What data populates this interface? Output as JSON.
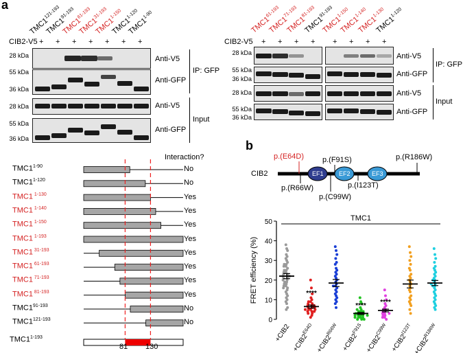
{
  "panel_a": {
    "label": "a",
    "left_lanes": [
      {
        "name": "TMC1",
        "sup": "121-193",
        "red": false
      },
      {
        "name": "TMC1",
        "sup": "91-193",
        "red": false
      },
      {
        "name": "TMC1",
        "sup": "61-193",
        "red": true
      },
      {
        "name": "TMC1",
        "sup": "31-193",
        "red": true
      },
      {
        "name": "TMC1",
        "sup": "1-150",
        "red": true
      },
      {
        "name": "TMC1",
        "sup": "1-120",
        "red": false
      },
      {
        "name": "TMC1",
        "sup": "1-90",
        "red": false
      }
    ],
    "right_lanes": [
      {
        "name": "TMC1",
        "sup": "61-193",
        "red": true
      },
      {
        "name": "TMC1",
        "sup": "71-193",
        "red": true
      },
      {
        "name": "TMC1",
        "sup": "81-193",
        "red": true
      },
      {
        "name": "TMC1",
        "sup": "91-193",
        "red": false
      },
      {
        "name": "TMC1",
        "sup": "1-150",
        "red": true
      },
      {
        "name": "TMC1",
        "sup": "1-140",
        "red": true
      },
      {
        "name": "TMC1",
        "sup": "1-130",
        "red": true
      },
      {
        "name": "TMC1",
        "sup": "1-120",
        "red": false
      }
    ],
    "cib2_label": "CIB2-V5",
    "plus": "+",
    "kda": {
      "k28": "28 kDa",
      "k55": "55 kDa",
      "k36": "36 kDa"
    },
    "row_labels": {
      "anti_v5": "Anti-V5",
      "anti_gfp": "Anti-GFP"
    },
    "group_labels": {
      "ip": "IP: GFP",
      "input": "Input"
    }
  },
  "map": {
    "header": "Interaction?",
    "constructs": [
      {
        "name": "TMC1",
        "sup": "1-90",
        "red": false,
        "result": "No"
      },
      {
        "name": "TMC1",
        "sup": "1-120",
        "red": false,
        "result": "No"
      },
      {
        "name": "TMC1",
        "sup": " 1-130",
        "red": true,
        "result": "Yes"
      },
      {
        "name": "TMC1",
        "sup": " 1-140",
        "red": true,
        "result": "Yes"
      },
      {
        "name": "TMC1",
        "sup": " 1-150",
        "red": true,
        "result": "Yes"
      },
      {
        "name": "TMC1",
        "sup": " 1-193",
        "red": true,
        "result": "Yes"
      },
      {
        "name": "TMC1",
        "sup": " 31-193",
        "red": true,
        "result": "Yes"
      },
      {
        "name": "TMC1",
        "sup": " 61-193",
        "red": true,
        "result": "Yes"
      },
      {
        "name": "TMC1",
        "sup": " 71-193",
        "red": true,
        "result": "Yes"
      },
      {
        "name": "TMC1",
        "sup": " 81-193",
        "red": true,
        "result": "Yes"
      },
      {
        "name": "TMC1",
        "sup": "91-193",
        "red": false,
        "result": "No"
      },
      {
        "name": "TMC1",
        "sup": "121-193",
        "red": false,
        "result": "No"
      }
    ],
    "full": {
      "name": "TMC1",
      "sup": "1-193"
    },
    "marker_left": "81",
    "marker_right": "130"
  },
  "panel_b": {
    "label": "b",
    "protein": "CIB2",
    "domains": [
      "EF1",
      "EF2",
      "EF3"
    ],
    "mutations": {
      "e64d": "p.(E64D)",
      "f91s": "p.(F91S)",
      "r186w": "p.(R186W)",
      "r66w": "p.(R66W)",
      "i123t": "p.(I123T)",
      "c99w": "p.(C99W)"
    }
  },
  "chart_data": {
    "type": "scatter",
    "title": "TMC1",
    "ylabel": "FRET efficiency (%)",
    "xlabel": "",
    "ylim": [
      0,
      50
    ],
    "yticks": [
      0,
      10,
      20,
      30,
      40,
      50
    ],
    "categories": [
      {
        "base": "+CIB2",
        "sup": "",
        "color": "#9a9a9a"
      },
      {
        "base": "+CIB2",
        "sup": "E64D",
        "color": "#e02020"
      },
      {
        "base": "+CIB2",
        "sup": "R66W",
        "color": "#1a3fd6"
      },
      {
        "base": "+CIB2",
        "sup": "F91S",
        "color": "#22c322"
      },
      {
        "base": "+CIB2",
        "sup": "C99W",
        "color": "#e040e0"
      },
      {
        "base": "+CIB2",
        "sup": "I123T",
        "color": "#f2a020"
      },
      {
        "base": "+CIB2",
        "sup": "R186W",
        "color": "#20d0e0"
      }
    ],
    "means": [
      22,
      6.5,
      18.5,
      3,
      4.5,
      18,
      18.5
    ],
    "sems": [
      1.3,
      0.8,
      1.8,
      0.5,
      0.7,
      2,
      1.3
    ],
    "significance": [
      "",
      "****",
      "",
      "****",
      "****",
      "",
      ""
    ],
    "series": [
      {
        "name": "+CIB2",
        "values": [
          38,
          36,
          35,
          33,
          32,
          31,
          30,
          29,
          28,
          28,
          27,
          27,
          26,
          25,
          25,
          24,
          24,
          23,
          23,
          22,
          22,
          22,
          21,
          21,
          20,
          20,
          19,
          19,
          18,
          18,
          17,
          17,
          16,
          16,
          15,
          14,
          13,
          12,
          11,
          10,
          9,
          8,
          6,
          5
        ]
      },
      {
        "name": "+CIB2 E64D",
        "values": [
          20,
          16,
          13,
          11,
          10,
          9,
          9,
          8,
          8,
          7,
          7,
          7,
          6,
          6,
          6,
          5,
          5,
          5,
          5,
          4,
          4,
          4,
          3,
          3,
          2,
          1
        ]
      },
      {
        "name": "+CIB2 R66W",
        "values": [
          37,
          35,
          33,
          31,
          29,
          28,
          26,
          25,
          24,
          23,
          22,
          21,
          20,
          19,
          18,
          17,
          17,
          16,
          15,
          14,
          13,
          12,
          11,
          10,
          9,
          8,
          6
        ]
      },
      {
        "name": "+CIB2 F91S",
        "values": [
          11,
          9,
          8,
          6,
          5,
          5,
          4,
          4,
          4,
          3,
          3,
          3,
          3,
          2,
          2,
          2,
          2,
          2,
          1,
          1,
          1,
          1,
          0,
          0,
          0
        ]
      },
      {
        "name": "+CIB2 C99W",
        "values": [
          15,
          12,
          10,
          8,
          7,
          6,
          5,
          5,
          4,
          4,
          3,
          3,
          3,
          2,
          2,
          1,
          1,
          0
        ]
      },
      {
        "name": "+CIB2 I123T",
        "values": [
          37,
          34,
          32,
          30,
          28,
          26,
          25,
          23,
          22,
          21,
          20,
          19,
          18,
          17,
          16,
          15,
          14,
          12,
          11,
          10,
          9,
          8,
          7,
          5,
          3
        ]
      },
      {
        "name": "+CIB2 R186W",
        "values": [
          36,
          33,
          31,
          29,
          27,
          26,
          25,
          24,
          23,
          22,
          21,
          20,
          20,
          19,
          18,
          18,
          17,
          17,
          16,
          15,
          14,
          13,
          12,
          11,
          10,
          9,
          8,
          7,
          6,
          5
        ]
      }
    ]
  }
}
